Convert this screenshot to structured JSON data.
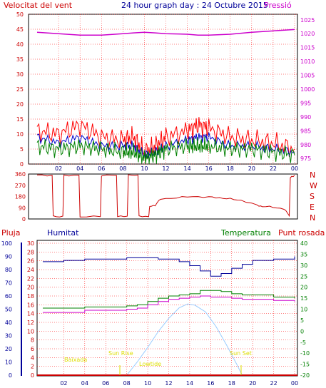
{
  "title": "24 hour graph day : 24 Octubre 2015",
  "colors": {
    "wind": "#ff0000",
    "wind_avg": "#0000cc",
    "wind_gust": "#008000",
    "pressure": "#cc00cc",
    "direction": "#cc0000",
    "rain": "#cc0000",
    "humidity": "#000099",
    "temperature": "#008000",
    "dewpoint": "#cc00cc",
    "solar": "#99ccff",
    "annotation": "#dddd00",
    "frame": "#000000"
  },
  "x_ticks": [
    "02",
    "04",
    "06",
    "08",
    "10",
    "12",
    "14",
    "16",
    "18",
    "20",
    "22",
    "00"
  ],
  "chart_data": [
    {
      "type": "line",
      "name": "wind-pressure",
      "left_label": "Velocitat del vent",
      "right_label": "Pressió",
      "left_ticks": [
        "0",
        "5",
        "10",
        "15",
        "20",
        "25",
        "30",
        "35",
        "40",
        "45",
        "50"
      ],
      "right_ticks": [
        "975",
        "980",
        "985",
        "990",
        "995",
        "1000",
        "1005",
        "1010",
        "1015",
        "1020",
        "1025"
      ],
      "ylim_left": [
        0,
        50
      ],
      "ylim_right": [
        973,
        1027
      ],
      "hours": [
        0,
        2,
        4,
        6,
        8,
        9,
        10,
        11,
        12,
        14,
        15,
        16,
        18,
        20,
        22,
        24
      ],
      "wind_gust": [
        11,
        10,
        13,
        9,
        8,
        9,
        4,
        6,
        9,
        11,
        13,
        12,
        9,
        8,
        7,
        5
      ],
      "wind_avg": [
        9,
        7,
        9,
        6,
        6,
        6,
        3,
        4,
        6,
        8,
        9,
        9,
        6,
        6,
        5,
        4
      ],
      "wind_speed": [
        6,
        5,
        6,
        5,
        4,
        4,
        2,
        3,
        5,
        6,
        6,
        6,
        5,
        5,
        4,
        3
      ],
      "pressure": [
        1020.5,
        1020.0,
        1019.5,
        1019.5,
        1020.0,
        1020.3,
        1020.5,
        1020.3,
        1020.0,
        1019.8,
        1019.5,
        1019.5,
        1019.8,
        1020.5,
        1021.0,
        1021.5
      ]
    },
    {
      "type": "line",
      "name": "wind-direction",
      "left_ticks": [
        "0",
        "90",
        "180",
        "270",
        "360"
      ],
      "right_ticks": [
        "N",
        "W",
        "S",
        "E",
        "N"
      ],
      "ylim": [
        0,
        360
      ],
      "hours": [
        0,
        1.4,
        1.5,
        2.4,
        2.5,
        3.9,
        4.0,
        5.9,
        6.0,
        7.4,
        7.5,
        8.4,
        8.5,
        9.4,
        9.5,
        10.4,
        10.5,
        11.0,
        11.5,
        13.0,
        14.5,
        16.0,
        17.0,
        18.0,
        19.0,
        20.5,
        21.0,
        22.0,
        23.0,
        23.5,
        23.6,
        24.0
      ],
      "direction": [
        350,
        350,
        20,
        20,
        350,
        350,
        20,
        20,
        350,
        350,
        20,
        20,
        350,
        350,
        20,
        20,
        100,
        110,
        160,
        170,
        180,
        175,
        170,
        160,
        150,
        110,
        100,
        95,
        80,
        30,
        330,
        350
      ]
    },
    {
      "type": "line",
      "name": "humidity-temperature",
      "labels": {
        "rain": "Pluja",
        "humidity": "Humitat",
        "temperature": "Temperatura",
        "dewpoint": "Punt rosada"
      },
      "rain_ticks": [
        "0",
        "2",
        "4",
        "6",
        "8",
        "10",
        "12",
        "14",
        "16",
        "18",
        "20",
        "22",
        "24",
        "26",
        "28",
        "30"
      ],
      "humidity_ticks": [
        "0",
        "10",
        "20",
        "30",
        "40",
        "50",
        "60",
        "70",
        "80",
        "90",
        "100"
      ],
      "temperature_ticks": [
        "-20",
        "-15",
        "-10",
        "-5",
        "0",
        "5",
        "10",
        "15",
        "20",
        "25",
        "30",
        "35",
        "40"
      ],
      "ylim_humidity": [
        0,
        100
      ],
      "ylim_temperature": [
        -20,
        40
      ],
      "hours": [
        0,
        2,
        4,
        6,
        8,
        9,
        10,
        11,
        12,
        13,
        14,
        15,
        16,
        17,
        18,
        19,
        20,
        22,
        24
      ],
      "humidity": [
        86,
        87,
        88,
        88,
        89,
        89,
        89,
        88,
        88,
        86,
        83,
        79,
        75,
        77,
        81,
        84,
        87,
        88,
        90
      ],
      "temperature": [
        10.5,
        10.5,
        11.0,
        11.0,
        11.5,
        12.0,
        13.5,
        15.0,
        16.0,
        16.5,
        17.0,
        18.5,
        18.5,
        18.0,
        17.0,
        16.5,
        16.5,
        15.5,
        15.0
      ],
      "dewpoint": [
        8.5,
        8.5,
        9.5,
        9.5,
        10.0,
        10.5,
        12.0,
        13.5,
        14.5,
        15.0,
        15.5,
        16.0,
        15.5,
        15.5,
        15.0,
        14.5,
        14.5,
        14.0,
        13.5
      ],
      "solar_hours": [
        8.0,
        9.0,
        10.0,
        11.0,
        12.0,
        13.0,
        13.8,
        14.5,
        15.5,
        16.5,
        17.5,
        18.5,
        19.0
      ],
      "solar": [
        0,
        10,
        21,
        33,
        43,
        51,
        54,
        53,
        48,
        37,
        23,
        8,
        0
      ],
      "annotations": {
        "twilight": "Baixada",
        "sunrise": "Sun Rise",
        "noon": "Lowtide",
        "sunset": "Sun Set"
      }
    }
  ]
}
